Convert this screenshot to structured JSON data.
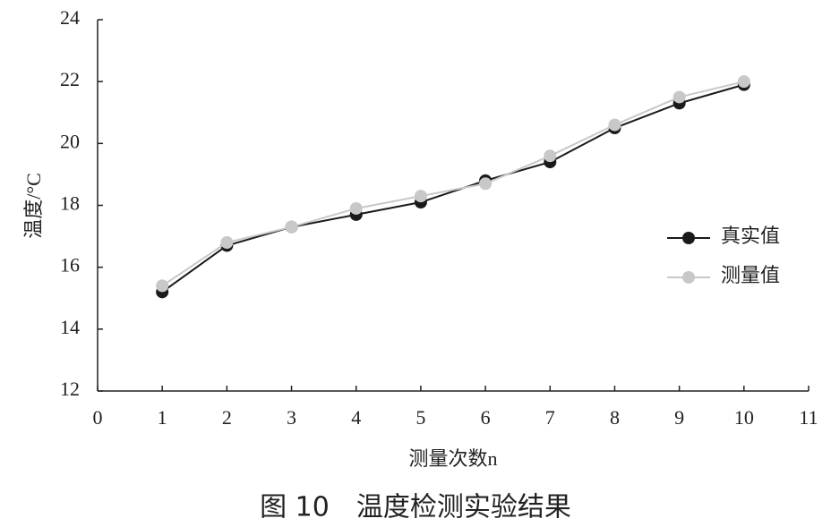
{
  "chart_data": {
    "type": "line",
    "caption": "图 10　温度检测实验结果",
    "xlabel": "测量次数n",
    "ylabel": "温度/°C",
    "x": [
      1,
      2,
      3,
      4,
      5,
      6,
      7,
      8,
      9,
      10
    ],
    "series": [
      {
        "name": "真实值",
        "color": "#1a1a1a",
        "values": [
          15.2,
          16.7,
          17.3,
          17.7,
          18.1,
          18.8,
          19.4,
          20.5,
          21.3,
          21.9
        ]
      },
      {
        "name": "测量值",
        "color": "#c8c8c8",
        "values": [
          15.4,
          16.8,
          17.3,
          17.9,
          18.3,
          18.7,
          19.6,
          20.6,
          21.5,
          22.0
        ]
      }
    ],
    "xlim": [
      0,
      11
    ],
    "xticks": [
      0,
      1,
      2,
      3,
      4,
      5,
      6,
      7,
      8,
      9,
      10,
      11
    ],
    "ylim": [
      12,
      24
    ],
    "yticks": [
      12,
      14,
      16,
      18,
      20,
      22,
      24
    ],
    "grid": false,
    "legend": "right"
  }
}
